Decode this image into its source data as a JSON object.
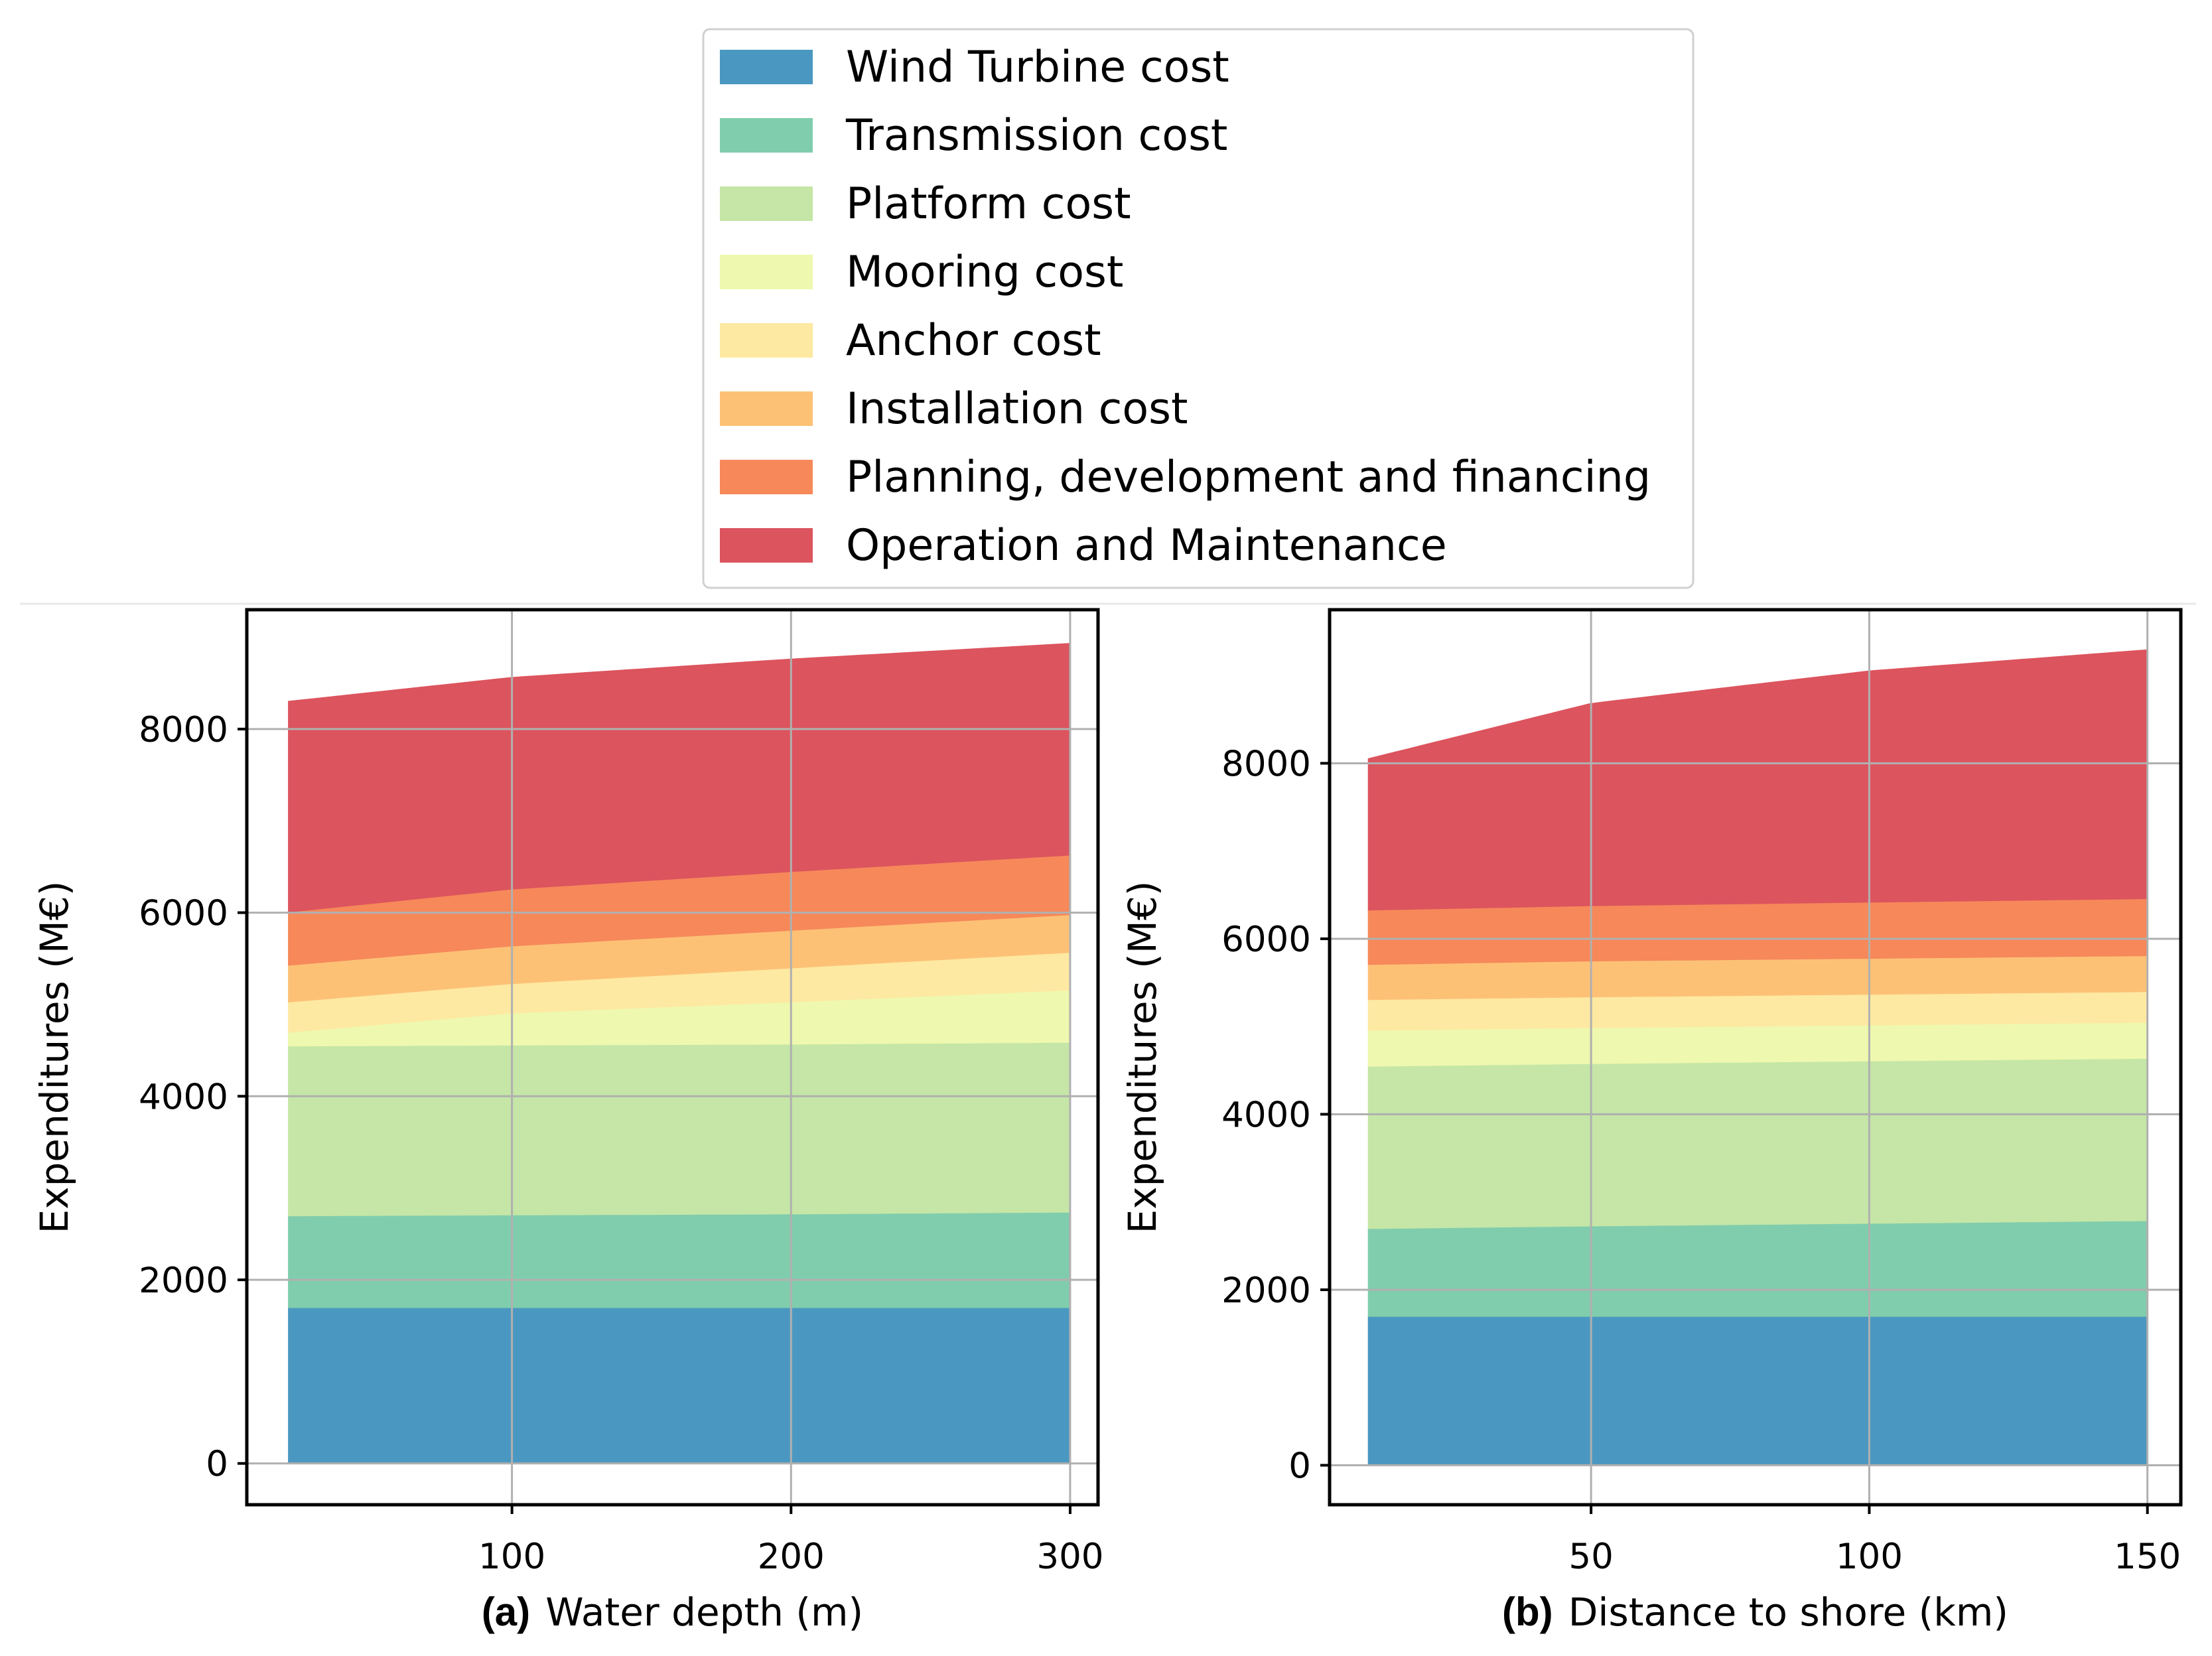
{
  "legend": {
    "entries": [
      {
        "label": "Wind Turbine cost",
        "color": "#4a98c1"
      },
      {
        "label": "Transmission cost",
        "color": "#80cdad"
      },
      {
        "label": "Platform cost",
        "color": "#c5e6a6"
      },
      {
        "label": "Mooring cost",
        "color": "#eef8ae"
      },
      {
        "label": "Anchor cost",
        "color": "#fde9a2"
      },
      {
        "label": "Installation cost",
        "color": "#fdc176"
      },
      {
        "label": "Planning, development and financing",
        "color": "#f6885a"
      },
      {
        "label": "Operation and Maintenance",
        "color": "#dc545e"
      }
    ]
  },
  "chart_data": [
    {
      "type": "area",
      "stacked": true,
      "panel_tag": "(a)",
      "xlabel": "Water depth (m)",
      "ylabel": "Expenditures (M€)",
      "xlim": [
        5,
        310
      ],
      "ylim": [
        -450,
        9300
      ],
      "xticks": [
        100,
        200,
        300
      ],
      "yticks": [
        0,
        2000,
        4000,
        6000,
        8000
      ],
      "grid": true,
      "x": [
        20,
        100,
        200,
        300
      ],
      "series": [
        {
          "name": "Wind Turbine cost",
          "values": [
            1700,
            1700,
            1700,
            1700
          ]
        },
        {
          "name": "Transmission cost",
          "values": [
            1000,
            1010,
            1020,
            1040
          ]
        },
        {
          "name": "Platform cost",
          "values": [
            1850,
            1850,
            1850,
            1850
          ]
        },
        {
          "name": "Mooring cost",
          "values": [
            150,
            350,
            460,
            570
          ]
        },
        {
          "name": "Anchor cost",
          "values": [
            330,
            320,
            370,
            410
          ]
        },
        {
          "name": "Installation cost",
          "values": [
            400,
            410,
            410,
            410
          ]
        },
        {
          "name": "Planning, development and financing",
          "values": [
            580,
            620,
            640,
            650
          ]
        },
        {
          "name": "Operation and Maintenance",
          "values": [
            2290,
            2300,
            2310,
            2300
          ]
        }
      ]
    },
    {
      "type": "area",
      "stacked": true,
      "panel_tag": "(b)",
      "xlabel": "Distance to shore (km)",
      "ylabel": "Expenditures (M€)",
      "xlim": [
        3,
        156
      ],
      "ylim": [
        -450,
        9750
      ],
      "xticks": [
        50,
        100,
        150
      ],
      "yticks": [
        0,
        2000,
        4000,
        6000,
        8000
      ],
      "grid": true,
      "x": [
        10,
        50,
        100,
        150
      ],
      "series": [
        {
          "name": "Wind Turbine cost",
          "values": [
            1700,
            1700,
            1700,
            1700
          ]
        },
        {
          "name": "Transmission cost",
          "values": [
            1000,
            1030,
            1060,
            1090
          ]
        },
        {
          "name": "Platform cost",
          "values": [
            1850,
            1850,
            1850,
            1850
          ]
        },
        {
          "name": "Mooring cost",
          "values": [
            410,
            410,
            410,
            410
          ]
        },
        {
          "name": "Anchor cost",
          "values": [
            350,
            350,
            350,
            350
          ]
        },
        {
          "name": "Installation cost",
          "values": [
            400,
            410,
            410,
            410
          ]
        },
        {
          "name": "Planning, development and financing",
          "values": [
            620,
            630,
            640,
            650
          ]
        },
        {
          "name": "Operation and Maintenance",
          "values": [
            1720,
            2300,
            2630,
            2830
          ]
        }
      ]
    }
  ]
}
